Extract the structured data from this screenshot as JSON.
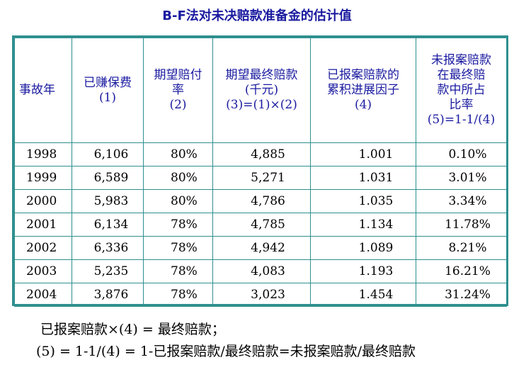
{
  "title": "B-F法对未决赔款准备金的估计值",
  "table": {
    "headers": [
      [
        "事故年"
      ],
      [
        "已赚保费",
        "(1)"
      ],
      [
        "期望赔付",
        "率",
        "(2)"
      ],
      [
        "期望最终赔款",
        "(千元)",
        "(3)=(1)×(2)"
      ],
      [
        "已报案赔款的",
        "累积进展因子",
        "(4)"
      ],
      [
        "未报案赔款",
        "在最终赔",
        "款中所占",
        "比率",
        "(5)=1-1/(4)"
      ]
    ],
    "rows": [
      [
        "1998",
        "6,106",
        "80%",
        "4,885",
        "1.001",
        "0.10%"
      ],
      [
        "1999",
        "6,589",
        "80%",
        "5,271",
        "1.031",
        "3.01%"
      ],
      [
        "2000",
        "5,983",
        "80%",
        "4,786",
        "1.035",
        "3.34%"
      ],
      [
        "2001",
        "6,134",
        "78%",
        "4,785",
        "1.134",
        "11.78%"
      ],
      [
        "2002",
        "6,336",
        "78%",
        "4,942",
        "1.089",
        "8.21%"
      ],
      [
        "2003",
        "5,235",
        "78%",
        "4,083",
        "1.193",
        "16.21%"
      ],
      [
        "2004",
        "3,876",
        "78%",
        "3,023",
        "1.454",
        "31.24%"
      ]
    ]
  },
  "notes": [
    "已报案赔款×(4) = 最终赔款；",
    "(5) = 1-1/(4) = 1-已报案赔款/最终赔款=未报案赔款/最终赔款"
  ],
  "colors": {
    "title": "#1a1aa0",
    "header_text": "#1a1aa0",
    "table_border": "#2f8f8f"
  }
}
